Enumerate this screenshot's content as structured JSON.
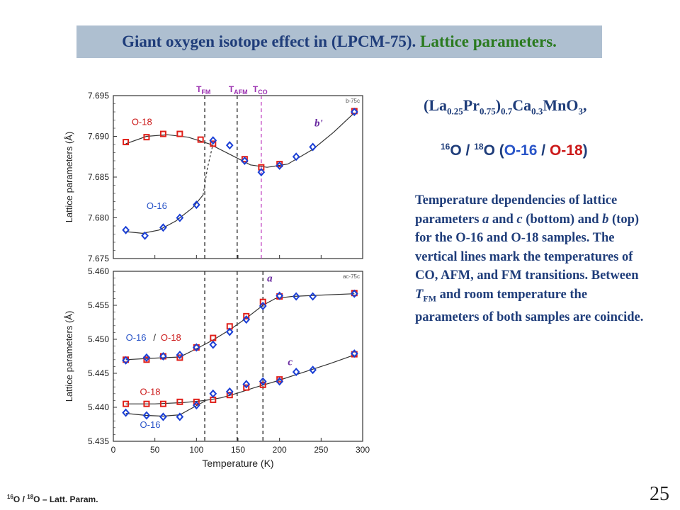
{
  "slide": {
    "title_part1": "Giant oxygen isotope effect in (LPCM-75).",
    "title_part2": "Lattice parameters.",
    "formula": {
      "a": "(La",
      "s1": "0.25",
      "b": "Pr",
      "s2": "0.75",
      "c": ")",
      "s3": "0.7",
      "d": "Ca",
      "s4": "0.3",
      "e": "MnO",
      "s5": "3",
      "f": ","
    },
    "isotopes": {
      "sup1": "16",
      "o1": "O / ",
      "sup2": "18",
      "o2": "O (",
      "o16": "O-16",
      "sep": " / ",
      "o18": "O-18",
      "close": ")"
    },
    "description": {
      "p1": "Temperature dependencies of lattice parameters ",
      "a": "a",
      "p2": " and ",
      "c": "c",
      "p3": " (bottom) and ",
      "b": "b",
      "p4": " (top) for the O-16 and O-18 samples. The vertical lines mark the temperatures of CO, AFM, and FM transitions. Between ",
      "T": "T",
      "FM": "FM",
      "p5": " and room temperature the parameters of both samples are coincide."
    },
    "footer": {
      "sup1": "16",
      "t1": "O / ",
      "sup2": "18",
      "t2": "O – Latt. Param."
    },
    "page_number": "25"
  },
  "colors": {
    "o16": "#1a3fd6",
    "o18": "#e0201a",
    "panel_bg": "#ffffff",
    "transition_label": "#9b30b0",
    "tco_line": "#c040c0",
    "label_blue": "#2a55c8",
    "label_red": "#cc1a1a",
    "label_purple": "#6a2aa0"
  },
  "chart_data": [
    {
      "type": "scatter",
      "panel": "top",
      "tag": "b-75c",
      "ylabel": "Lattice parameters (Å)",
      "xlim": [
        0,
        300
      ],
      "ylim": [
        7.675,
        7.695
      ],
      "yticks": [
        "7.675",
        "7.680",
        "7.685",
        "7.690",
        "7.695"
      ],
      "curve_label": "b'",
      "transitions": [
        {
          "label": "T",
          "sub": "FM",
          "x": 110
        },
        {
          "label": "T",
          "sub": "AFM",
          "x": 149
        },
        {
          "label": "T",
          "sub": "CO",
          "x": 178
        }
      ],
      "series": [
        {
          "name": "O-18",
          "marker": "square",
          "x": [
            15,
            40,
            60,
            80,
            105,
            120,
            158,
            178,
            200,
            290
          ],
          "values": [
            7.6893,
            7.6899,
            7.6903,
            7.6903,
            7.6896,
            7.6891,
            7.6872,
            7.6862,
            7.6866,
            7.6931
          ],
          "fit": [
            [
              15,
              7.6891
            ],
            [
              40,
              7.69
            ],
            [
              65,
              7.6902
            ],
            [
              90,
              7.6899
            ],
            [
              115,
              7.6891
            ],
            [
              140,
              7.6878
            ],
            [
              165,
              7.6865
            ],
            [
              185,
              7.6862
            ],
            [
              210,
              7.6866
            ],
            [
              240,
              7.6884
            ],
            [
              265,
              7.6905
            ],
            [
              290,
              7.6929
            ]
          ]
        },
        {
          "name": "O-16",
          "marker": "diamond",
          "x": [
            15,
            38,
            60,
            80,
            100,
            120,
            140,
            158,
            178,
            200,
            220,
            240,
            290
          ],
          "values": [
            7.6785,
            7.6778,
            7.6788,
            7.68,
            7.6816,
            7.6895,
            7.6889,
            7.687,
            7.6856,
            7.6864,
            7.6875,
            7.6887,
            7.693
          ],
          "fit": [
            [
              15,
              7.6783
            ],
            [
              35,
              7.6781
            ],
            [
              55,
              7.6785
            ],
            [
              75,
              7.6796
            ],
            [
              95,
              7.6812
            ],
            [
              108,
              7.6828
            ]
          ],
          "dashed_link": [
            [
              108,
              7.6828
            ],
            [
              113,
              7.686
            ],
            [
              120,
              7.6891
            ]
          ]
        }
      ],
      "series_labels": [
        {
          "text": "O-18",
          "x": 22,
          "y": 7.6914
        },
        {
          "text": "O-16",
          "x": 40,
          "y": 7.6811
        }
      ]
    },
    {
      "type": "scatter",
      "panel": "bottom",
      "tag": "ac-75c",
      "ylabel": "Lattice parameters (Å)",
      "xlabel": "Temperature (K)",
      "xlim": [
        0,
        300
      ],
      "xticks": [
        "0",
        "50",
        "100",
        "150",
        "200",
        "250",
        "300"
      ],
      "ylim": [
        5.435,
        5.46
      ],
      "yticks": [
        "5.435",
        "5.440",
        "5.445",
        "5.450",
        "5.455",
        "5.460"
      ],
      "transitions_x": [
        110,
        149,
        180
      ],
      "curve_labels": [
        "a",
        "c"
      ],
      "series": [
        {
          "name": "O-18 a",
          "marker": "square",
          "x": [
            15,
            40,
            60,
            80,
            100,
            120,
            140,
            160,
            180,
            200,
            290
          ],
          "values": [
            5.447,
            5.447,
            5.4475,
            5.4473,
            5.4488,
            5.4502,
            5.4519,
            5.4534,
            5.4555,
            5.4563,
            5.4568
          ]
        },
        {
          "name": "O-16 a",
          "marker": "diamond",
          "x": [
            15,
            40,
            60,
            80,
            100,
            120,
            140,
            160,
            180,
            200,
            220,
            240,
            290
          ],
          "values": [
            5.4469,
            5.4473,
            5.4475,
            5.4477,
            5.4488,
            5.4492,
            5.4511,
            5.4529,
            5.4549,
            5.4564,
            5.4563,
            5.4563,
            5.4567
          ]
        },
        {
          "name": "O-18 c",
          "marker": "square",
          "x": [
            15,
            40,
            60,
            80,
            100,
            120,
            140,
            160,
            180,
            200,
            290
          ],
          "values": [
            5.4405,
            5.4405,
            5.4405,
            5.4408,
            5.4408,
            5.4411,
            5.4418,
            5.4429,
            5.4433,
            5.4441,
            5.4478
          ]
        },
        {
          "name": "O-16 c",
          "marker": "diamond",
          "x": [
            15,
            40,
            60,
            80,
            100,
            120,
            140,
            160,
            180,
            200,
            220,
            240,
            290
          ],
          "values": [
            5.4392,
            5.4388,
            5.4386,
            5.4386,
            5.4403,
            5.442,
            5.4423,
            5.4434,
            5.4438,
            5.4438,
            5.4452,
            5.4455,
            5.4479
          ]
        }
      ],
      "fits": [
        {
          "name": "a fit",
          "points": [
            [
              15,
              5.447
            ],
            [
              45,
              5.4472
            ],
            [
              80,
              5.4474
            ],
            [
              100,
              5.4486
            ],
            [
              120,
              5.4499
            ],
            [
              140,
              5.4514
            ],
            [
              160,
              5.4531
            ],
            [
              180,
              5.455
            ],
            [
              195,
              5.456
            ],
            [
              215,
              5.4563
            ],
            [
              250,
              5.4565
            ],
            [
              290,
              5.4567
            ]
          ]
        },
        {
          "name": "c fit O-18",
          "points": [
            [
              15,
              5.4405
            ],
            [
              50,
              5.4405
            ],
            [
              85,
              5.4407
            ],
            [
              110,
              5.441
            ],
            [
              130,
              5.4414
            ],
            [
              150,
              5.4421
            ],
            [
              170,
              5.4429
            ],
            [
              195,
              5.4438
            ],
            [
              230,
              5.4452
            ],
            [
              260,
              5.4464
            ],
            [
              290,
              5.4477
            ]
          ]
        },
        {
          "name": "c fit O-16",
          "points": [
            [
              15,
              5.4391
            ],
            [
              40,
              5.4388
            ],
            [
              60,
              5.4387
            ],
            [
              80,
              5.4389
            ],
            [
              92,
              5.4397
            ],
            [
              110,
              5.4409
            ]
          ]
        }
      ],
      "series_labels": [
        {
          "text": "O-16",
          "color": "blue",
          "x": 15,
          "y": 5.4498
        },
        {
          "text": "/",
          "color": "dark",
          "x": 48,
          "y": 5.4498
        },
        {
          "text": "O-18",
          "color": "red",
          "x": 57,
          "y": 5.4498
        },
        {
          "text": "O-18",
          "color": "red",
          "x": 32,
          "y": 5.4418
        },
        {
          "text": "O-16",
          "color": "blue",
          "x": 32,
          "y": 5.437
        }
      ]
    }
  ]
}
